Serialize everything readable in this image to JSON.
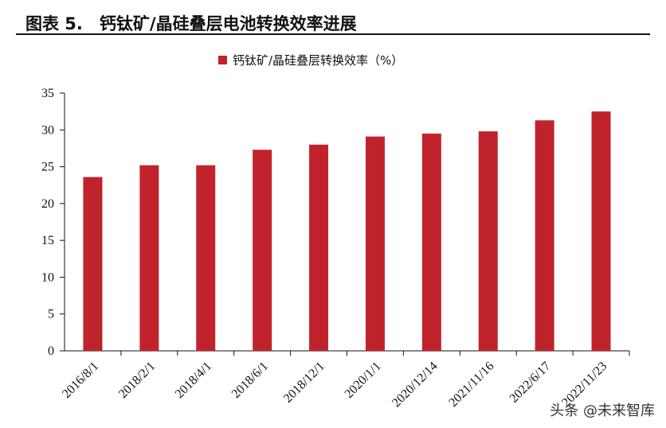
{
  "figure_title": "图表 5.　钙钛矿/晶硅叠层电池转换效率进展",
  "watermark": "头条 @未来智库",
  "colors": {
    "bar": "#c0232c",
    "axis": "#111111",
    "text": "#111111"
  },
  "chart_data": {
    "type": "bar",
    "categories": [
      "2016/8/1",
      "2018/2/1",
      "2018/4/1",
      "2018/6/1",
      "2018/12/1",
      "2020/1/1",
      "2020/12/14",
      "2021/11/16",
      "2022/6/17",
      "2022/11/23"
    ],
    "series": [
      {
        "name": "钙钛矿/晶硅叠层转换效率（%）",
        "values": [
          23.6,
          25.2,
          25.2,
          27.3,
          28.0,
          29.1,
          29.5,
          29.8,
          31.3,
          32.5
        ]
      }
    ],
    "ylim": [
      0,
      35
    ],
    "yticks": [
      0,
      5,
      10,
      15,
      20,
      25,
      30,
      35
    ],
    "grid": false,
    "legend": "top-center"
  }
}
